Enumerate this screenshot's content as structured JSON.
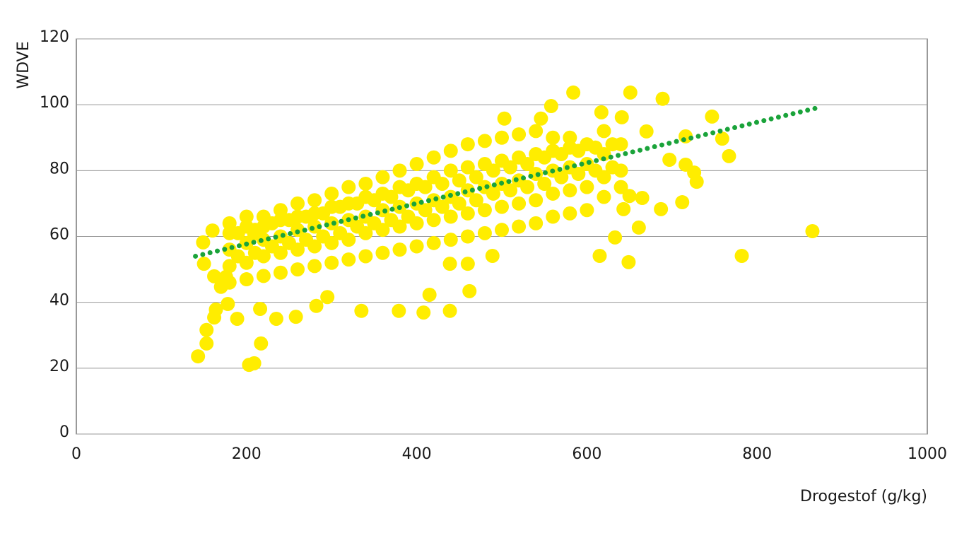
{
  "chart_data": {
    "type": "scatter",
    "xlabel": "Drogestof (g/kg)",
    "ylabel": "WDVE",
    "xlim": [
      0,
      1000
    ],
    "ylim": [
      0,
      120
    ],
    "xticks": [
      0,
      200,
      400,
      600,
      800,
      1000
    ],
    "yticks": [
      0,
      20,
      40,
      60,
      80,
      100,
      120
    ],
    "grid": true,
    "series": [
      {
        "color": "#ffed00",
        "x": [
          143,
          153,
          153,
          217,
          203,
          209,
          189,
          235,
          164,
          162,
          178,
          282,
          258,
          295,
          335,
          379,
          408,
          439,
          415,
          462,
          439,
          460,
          489,
          615,
          649,
          633,
          661,
          865,
          782,
          729,
          767,
          759,
          747,
          689,
          651,
          584,
          558,
          617,
          641,
          503,
          546,
          712,
          687,
          697,
          716,
          726,
          670,
          716,
          650,
          643,
          665,
          160,
          149,
          150,
          162,
          170,
          176,
          216,
          209,
          180,
          180,
          180,
          180,
          180,
          200,
          200,
          200,
          200,
          200,
          220,
          220,
          220,
          220,
          220,
          240,
          240,
          240,
          240,
          240,
          260,
          260,
          260,
          260,
          260,
          280,
          280,
          280,
          280,
          280,
          300,
          300,
          300,
          300,
          300,
          320,
          320,
          320,
          320,
          320,
          340,
          340,
          340,
          340,
          340,
          360,
          360,
          360,
          360,
          360,
          380,
          380,
          380,
          380,
          380,
          400,
          400,
          400,
          400,
          400,
          420,
          420,
          420,
          420,
          420,
          440,
          440,
          440,
          440,
          440,
          460,
          460,
          460,
          460,
          460,
          480,
          480,
          480,
          480,
          480,
          500,
          500,
          500,
          500,
          500,
          520,
          520,
          520,
          520,
          520,
          540,
          540,
          540,
          540,
          540,
          560,
          560,
          560,
          560,
          560,
          580,
          580,
          580,
          580,
          580,
          600,
          600,
          600,
          600,
          620,
          620,
          620,
          620,
          640,
          640,
          640,
          190,
          190,
          210,
          210,
          230,
          230,
          250,
          250,
          270,
          270,
          290,
          290,
          310,
          310,
          330,
          330,
          350,
          350,
          370,
          370,
          390,
          390,
          410,
          410,
          430,
          430,
          450,
          450,
          470,
          470,
          490,
          490,
          510,
          510,
          530,
          530,
          550,
          550,
          570,
          570,
          590,
          590,
          610,
          610,
          630,
          630
        ],
        "values": [
          23.6,
          27.5,
          31.6,
          27.5,
          21,
          21.5,
          35,
          35,
          37.8,
          35.4,
          39.5,
          38.9,
          35.6,
          41.6,
          37.4,
          37.4,
          36.9,
          37.4,
          42.3,
          43.4,
          51.7,
          51.7,
          54.1,
          54.1,
          52.2,
          59.7,
          62.7,
          61.6,
          54.1,
          76.6,
          84.4,
          89.7,
          96.4,
          101.8,
          103.7,
          103.7,
          99.6,
          97.7,
          96.2,
          95.8,
          95.8,
          70.4,
          68.3,
          83.3,
          81.8,
          79.4,
          91.9,
          90.4,
          72.3,
          68.3,
          71.7,
          61.8,
          58.2,
          51.7,
          47.9,
          44.7,
          47.7,
          38,
          60.8,
          46,
          51,
          56,
          61,
          64,
          47,
          52,
          58,
          63,
          66,
          48,
          54,
          59,
          63,
          66,
          49,
          55,
          60,
          65,
          68,
          50,
          56,
          62,
          66,
          70,
          51,
          57,
          63,
          67,
          71,
          52,
          58,
          64,
          69,
          73,
          53,
          59,
          65,
          70,
          75,
          54,
          61,
          66,
          72,
          76,
          55,
          62,
          68,
          73,
          78,
          56,
          63,
          69,
          75,
          80,
          57,
          64,
          70,
          76,
          82,
          58,
          65,
          71,
          78,
          84,
          59,
          66,
          72,
          80,
          86,
          60,
          67,
          74,
          81,
          88,
          61,
          68,
          75,
          82,
          89,
          62,
          69,
          76,
          83,
          90,
          63,
          70,
          77,
          84,
          91,
          64,
          71,
          79,
          85,
          92,
          66,
          73,
          80,
          86,
          90,
          67,
          74,
          81,
          87,
          90,
          68,
          75,
          82,
          88,
          72,
          78,
          85,
          92,
          75,
          80,
          88,
          54,
          61,
          55,
          62,
          57,
          64,
          58,
          65,
          59,
          66,
          60,
          67,
          61,
          69,
          63,
          70,
          64,
          71,
          65,
          72,
          66,
          74,
          68,
          75,
          69,
          76,
          70,
          77,
          71,
          78,
          73,
          80,
          74,
          81,
          75,
          82,
          76,
          84,
          78,
          85,
          79,
          86,
          80,
          87,
          81,
          88
        ]
      }
    ],
    "trendline": {
      "color": "#1aa33a",
      "x": [
        140,
        870
      ],
      "values": [
        54,
        99
      ]
    }
  }
}
